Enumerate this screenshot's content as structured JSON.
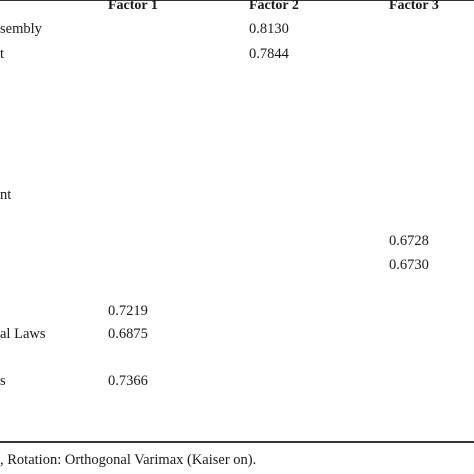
{
  "table": {
    "headers": [
      "Factor 1",
      "Factor 2",
      "Factor 3"
    ],
    "rows": [
      {
        "label": "sembly",
        "f1": "",
        "f2": "0.8130",
        "f3": ""
      },
      {
        "label": "t",
        "f1": "",
        "f2": "0.7844",
        "f3": ""
      },
      {
        "label": "nt",
        "f1": "",
        "f2": "",
        "f3": ""
      },
      {
        "label": "",
        "f1": "",
        "f2": "",
        "f3": "0.6728"
      },
      {
        "label": "",
        "f1": "",
        "f2": "",
        "f3": "0.6730"
      },
      {
        "label": "",
        "f1": "0.7219",
        "f2": "",
        "f3": ""
      },
      {
        "label": "al Laws",
        "f1": "0.6875",
        "f2": "",
        "f3": ""
      },
      {
        "label": "s",
        "f1": "0.7366",
        "f2": "",
        "f3": ""
      }
    ]
  },
  "footnote": ", Rotation: Orthogonal Varimax (Kaiser on)."
}
